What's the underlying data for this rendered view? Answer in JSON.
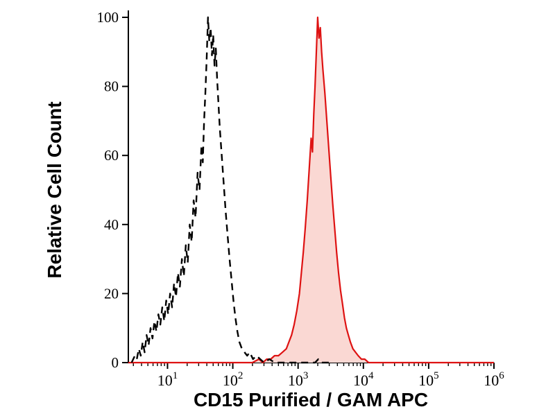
{
  "page": {
    "background": "#ffffff"
  },
  "chart_data": {
    "type": "area",
    "subtype": "flow-cytometry-overlay-histogram",
    "title": "",
    "xlabel": "CD15 Purified / GAM APC",
    "ylabel": "Relative Cell Count",
    "x_scale": "log10",
    "xlim_log10": [
      0.4,
      6.0
    ],
    "ylim": [
      0,
      100
    ],
    "x_major_tick_base": "10",
    "x_major_tick_exponents": [
      "1",
      "2",
      "3",
      "4",
      "5",
      "6"
    ],
    "y_ticks": [
      0,
      20,
      40,
      60,
      80,
      100
    ],
    "grid": false,
    "legend": "none",
    "axis_color": "#000000",
    "series": [
      {
        "name": "dashed-black-histogram",
        "color": "#000000",
        "line_style": "dashed",
        "line_width": 2.4,
        "fill": "none",
        "peak_log10x": 1.62,
        "peak_y": 100,
        "points_log10x_y": [
          [
            0.45,
            0
          ],
          [
            0.5,
            2
          ],
          [
            0.53,
            1
          ],
          [
            0.56,
            4
          ],
          [
            0.59,
            2
          ],
          [
            0.62,
            6
          ],
          [
            0.65,
            3
          ],
          [
            0.68,
            8
          ],
          [
            0.71,
            5
          ],
          [
            0.74,
            10
          ],
          [
            0.77,
            7
          ],
          [
            0.8,
            12
          ],
          [
            0.83,
            9
          ],
          [
            0.86,
            14
          ],
          [
            0.89,
            11
          ],
          [
            0.92,
            16
          ],
          [
            0.95,
            12
          ],
          [
            0.98,
            18
          ],
          [
            1.01,
            14
          ],
          [
            1.04,
            20
          ],
          [
            1.07,
            16
          ],
          [
            1.1,
            23
          ],
          [
            1.13,
            19
          ],
          [
            1.16,
            26
          ],
          [
            1.19,
            22
          ],
          [
            1.22,
            30
          ],
          [
            1.25,
            25
          ],
          [
            1.28,
            34
          ],
          [
            1.31,
            29
          ],
          [
            1.34,
            40
          ],
          [
            1.37,
            35
          ],
          [
            1.4,
            47
          ],
          [
            1.43,
            42
          ],
          [
            1.46,
            55
          ],
          [
            1.49,
            50
          ],
          [
            1.52,
            63
          ],
          [
            1.54,
            58
          ],
          [
            1.56,
            70
          ],
          [
            1.58,
            78
          ],
          [
            1.6,
            88
          ],
          [
            1.62,
            100
          ],
          [
            1.64,
            93
          ],
          [
            1.66,
            97
          ],
          [
            1.68,
            89
          ],
          [
            1.7,
            95
          ],
          [
            1.72,
            86
          ],
          [
            1.74,
            91
          ],
          [
            1.76,
            82
          ],
          [
            1.78,
            75
          ],
          [
            1.8,
            68
          ],
          [
            1.83,
            60
          ],
          [
            1.86,
            52
          ],
          [
            1.89,
            44
          ],
          [
            1.92,
            37
          ],
          [
            1.95,
            30
          ],
          [
            1.98,
            24
          ],
          [
            2.01,
            18
          ],
          [
            2.04,
            13
          ],
          [
            2.07,
            9
          ],
          [
            2.1,
            6
          ],
          [
            2.14,
            4
          ],
          [
            2.18,
            3
          ],
          [
            2.22,
            2
          ],
          [
            2.26,
            3
          ],
          [
            2.31,
            1
          ],
          [
            2.36,
            2
          ],
          [
            2.42,
            1
          ],
          [
            2.48,
            0
          ],
          [
            2.56,
            1
          ],
          [
            2.64,
            0
          ],
          [
            3.26,
            0
          ],
          [
            3.31,
            1
          ],
          [
            3.36,
            0
          ],
          [
            3.5,
            0
          ]
        ]
      },
      {
        "name": "red-filled-histogram",
        "color": "#de1212",
        "line_style": "solid",
        "line_width": 2.2,
        "fill": "#fad8d3",
        "peak_log10x": 3.3,
        "peak_y": 100,
        "points_log10x_y": [
          [
            0.4,
            0
          ],
          [
            2.3,
            0
          ],
          [
            2.4,
            1
          ],
          [
            2.46,
            0
          ],
          [
            2.52,
            1
          ],
          [
            2.58,
            1
          ],
          [
            2.64,
            2
          ],
          [
            2.7,
            2
          ],
          [
            2.76,
            3
          ],
          [
            2.82,
            4
          ],
          [
            2.86,
            6
          ],
          [
            2.9,
            8
          ],
          [
            2.94,
            11
          ],
          [
            2.98,
            15
          ],
          [
            3.02,
            20
          ],
          [
            3.05,
            26
          ],
          [
            3.08,
            32
          ],
          [
            3.11,
            39
          ],
          [
            3.14,
            47
          ],
          [
            3.17,
            56
          ],
          [
            3.2,
            65
          ],
          [
            3.22,
            61
          ],
          [
            3.24,
            72
          ],
          [
            3.26,
            80
          ],
          [
            3.28,
            90
          ],
          [
            3.3,
            100
          ],
          [
            3.32,
            94
          ],
          [
            3.34,
            97
          ],
          [
            3.36,
            90
          ],
          [
            3.38,
            85
          ],
          [
            3.41,
            78
          ],
          [
            3.44,
            70
          ],
          [
            3.47,
            62
          ],
          [
            3.5,
            54
          ],
          [
            3.53,
            46
          ],
          [
            3.56,
            39
          ],
          [
            3.59,
            32
          ],
          [
            3.62,
            26
          ],
          [
            3.65,
            21
          ],
          [
            3.68,
            17
          ],
          [
            3.71,
            13
          ],
          [
            3.74,
            10
          ],
          [
            3.77,
            8
          ],
          [
            3.8,
            6
          ],
          [
            3.84,
            4
          ],
          [
            3.88,
            3
          ],
          [
            3.92,
            2
          ],
          [
            3.97,
            1
          ],
          [
            4.02,
            1
          ],
          [
            4.08,
            0
          ],
          [
            6.0,
            0
          ]
        ]
      }
    ]
  }
}
